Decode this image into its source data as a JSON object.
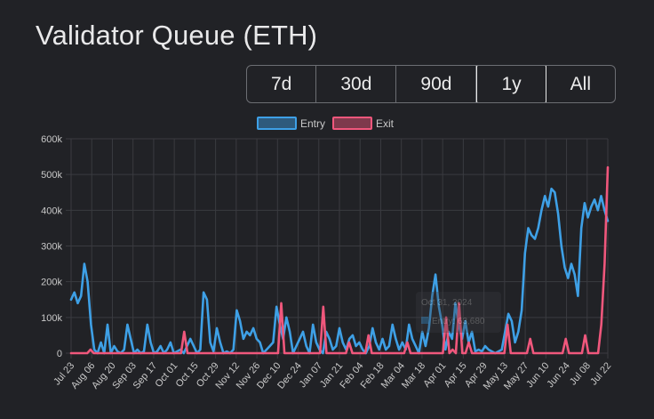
{
  "title": "Validator Queue (ETH)",
  "range_buttons": [
    {
      "label": "7d",
      "active": false
    },
    {
      "label": "30d",
      "active": false
    },
    {
      "label": "90d",
      "active": false
    },
    {
      "label": "1y",
      "active": true
    },
    {
      "label": "All",
      "active": false
    }
  ],
  "colors": {
    "entry": "#3ea0e6",
    "exit": "#f0577c",
    "background": "#212226",
    "grid": "#3a3b40"
  },
  "tooltip": {
    "date": "Oct 31, 2024",
    "series": "Entry",
    "value": "63,680"
  },
  "chart_data": {
    "type": "line",
    "legend_position": "top",
    "grid": true,
    "ylim": [
      0,
      600000
    ],
    "y_ticks": [
      "0",
      "100k",
      "200k",
      "300k",
      "400k",
      "500k",
      "600k"
    ],
    "x_ticks": [
      "Jul 23",
      "Aug 06",
      "Aug 20",
      "Sep 03",
      "Sep 17",
      "Oct 01",
      "Oct 15",
      "Oct 29",
      "Nov 12",
      "Nov 26",
      "Dec 10",
      "Dec 24",
      "Jan 07",
      "Jan 21",
      "Feb 04",
      "Feb 18",
      "Mar 04",
      "Mar 18",
      "Apr 01",
      "Apr 15",
      "Apr 29",
      "May 13",
      "May 27",
      "Jun 10",
      "Jun 24",
      "Jul 08",
      "Jul 22"
    ],
    "series": [
      {
        "name": "Entry",
        "color": "#3ea0e6",
        "values": [
          150000,
          170000,
          140000,
          160000,
          250000,
          200000,
          80000,
          10000,
          0,
          30000,
          0,
          80000,
          0,
          20000,
          5000,
          0,
          10000,
          80000,
          40000,
          0,
          10000,
          0,
          5000,
          80000,
          30000,
          0,
          5000,
          20000,
          0,
          10000,
          30000,
          0,
          5000,
          10000,
          0,
          20000,
          40000,
          20000,
          0,
          10000,
          170000,
          150000,
          30000,
          5000,
          70000,
          30000,
          0,
          5000,
          0,
          10000,
          120000,
          90000,
          40000,
          60000,
          50000,
          70000,
          40000,
          30000,
          0,
          10000,
          20000,
          30000,
          130000,
          80000,
          40000,
          100000,
          60000,
          0,
          20000,
          40000,
          60000,
          20000,
          0,
          80000,
          30000,
          10000,
          0,
          60000,
          40000,
          10000,
          20000,
          70000,
          30000,
          10000,
          40000,
          50000,
          20000,
          30000,
          10000,
          0,
          20000,
          70000,
          30000,
          10000,
          40000,
          10000,
          20000,
          80000,
          40000,
          10000,
          30000,
          10000,
          80000,
          40000,
          20000,
          0,
          60000,
          20000,
          70000,
          160000,
          220000,
          130000,
          80000,
          10000,
          60000,
          40000,
          140000,
          80000,
          40000,
          90000,
          30000,
          60000,
          5000,
          10000,
          5000,
          20000,
          10000,
          5000,
          0,
          5000,
          10000,
          60000,
          110000,
          90000,
          30000,
          60000,
          120000,
          280000,
          350000,
          330000,
          320000,
          350000,
          400000,
          440000,
          410000,
          460000,
          450000,
          390000,
          300000,
          240000,
          210000,
          250000,
          220000,
          160000,
          350000,
          420000,
          380000,
          410000,
          430000,
          400000,
          440000,
          400000,
          370000
        ]
      },
      {
        "name": "Exit",
        "color": "#f0577c",
        "values": [
          0,
          0,
          0,
          0,
          0,
          0,
          10000,
          0,
          0,
          0,
          0,
          0,
          0,
          0,
          0,
          0,
          0,
          0,
          0,
          0,
          0,
          0,
          0,
          0,
          0,
          0,
          0,
          0,
          0,
          0,
          0,
          0,
          0,
          0,
          0,
          60000,
          0,
          0,
          0,
          0,
          0,
          0,
          0,
          0,
          0,
          0,
          0,
          0,
          0,
          0,
          0,
          0,
          0,
          0,
          0,
          0,
          0,
          0,
          0,
          0,
          0,
          0,
          0,
          0,
          0,
          140000,
          0,
          0,
          0,
          0,
          0,
          0,
          0,
          0,
          0,
          0,
          0,
          0,
          130000,
          0,
          0,
          0,
          0,
          0,
          0,
          0,
          30000,
          0,
          0,
          0,
          0,
          0,
          50000,
          0,
          0,
          0,
          0,
          0,
          0,
          0,
          0,
          0,
          0,
          0,
          30000,
          0,
          0,
          0,
          0,
          0,
          0,
          0,
          0,
          0,
          0,
          0,
          100000,
          0,
          10000,
          0,
          140000,
          0,
          0,
          30000,
          0,
          0,
          0,
          0,
          0,
          0,
          0,
          0,
          0,
          0,
          0,
          80000,
          0,
          0,
          0,
          0,
          0,
          0,
          40000,
          0,
          0,
          0,
          0,
          0,
          0,
          0,
          0,
          0,
          0,
          40000,
          0,
          0,
          0,
          0,
          0,
          50000,
          0,
          0,
          0,
          0,
          80000,
          250000,
          520000
        ]
      }
    ]
  }
}
